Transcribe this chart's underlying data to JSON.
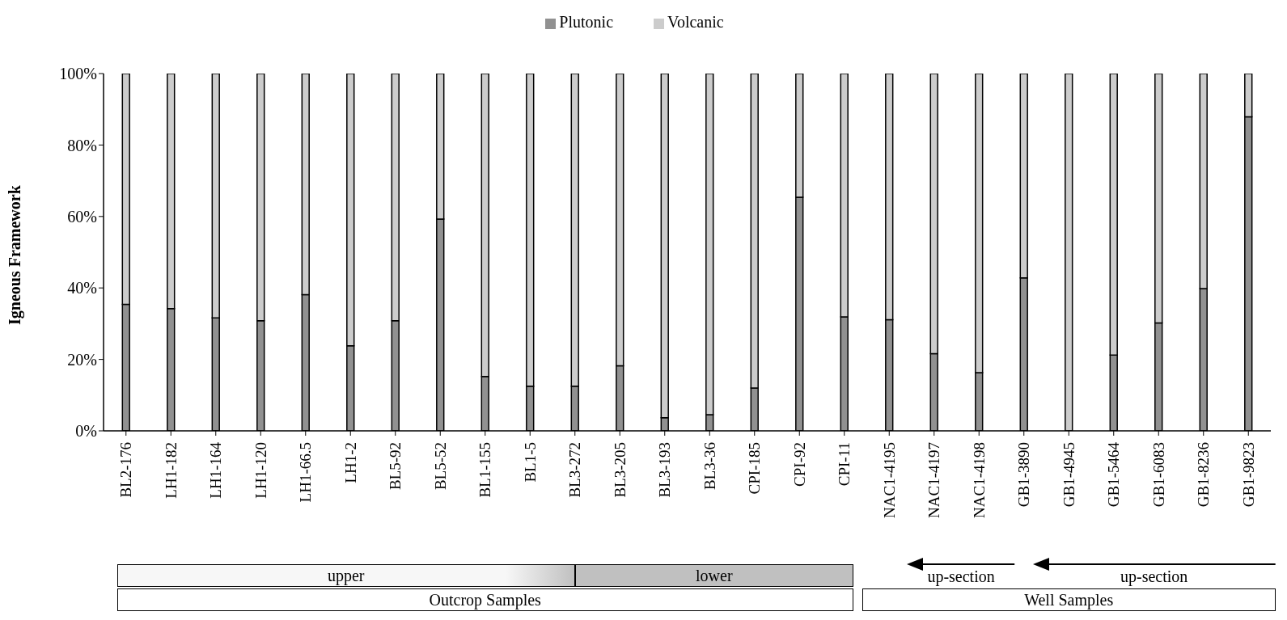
{
  "chart_data": {
    "type": "bar",
    "stacked": true,
    "ylabel": "Igneous Framework",
    "categories": [
      "BL2-176",
      "LH1-182",
      "LH1-164",
      "LH1-120",
      "LH1-66.5",
      "LH1-2",
      "BL5-92",
      "BL5-52",
      "BL1-155",
      "BL1-5",
      "BL3-272",
      "BL3-205",
      "BL3-193",
      "BL3-36",
      "CPI-185",
      "CPI-92",
      "CPI-11",
      "NAC1-4195",
      "NAC1-4197",
      "NAC1-4198",
      "GB1-3890",
      "GB1-4945",
      "GB1-5464",
      "GB1-6083",
      "GB1-8236",
      "GB1-9823"
    ],
    "series": [
      {
        "name": "Plutonic",
        "color": "#919191",
        "values": [
          35.4,
          34.2,
          31.6,
          30.8,
          38.1,
          23.8,
          30.8,
          59.3,
          15.2,
          12.5,
          12.5,
          18.2,
          3.7,
          4.5,
          12.0,
          65.4,
          31.9,
          31.1,
          21.6,
          16.3,
          42.8,
          0,
          21.2,
          30.2,
          39.8,
          87.9
        ]
      },
      {
        "name": "Volcanic",
        "color": "#cccccc",
        "values": [
          64.6,
          65.8,
          68.4,
          69.2,
          61.9,
          76.2,
          69.2,
          40.7,
          84.8,
          87.5,
          87.5,
          81.8,
          96.3,
          95.5,
          88.0,
          34.6,
          68.1,
          68.9,
          78.4,
          83.7,
          57.2,
          100,
          78.8,
          69.8,
          60.2,
          12.1
        ]
      }
    ],
    "ylim": [
      0,
      100
    ],
    "yticks": [
      {
        "value": 0,
        "label": "0%"
      },
      {
        "value": 20,
        "label": "20%"
      },
      {
        "value": 40,
        "label": "40%"
      },
      {
        "value": 60,
        "label": "60%"
      },
      {
        "value": 80,
        "label": "80%"
      },
      {
        "value": 100,
        "label": "100%"
      }
    ],
    "grid": false,
    "legend": "top",
    "annotations": [
      "upper",
      "lower",
      "up-section",
      "up-section",
      "Outcrop Samples",
      "Well Samples"
    ]
  }
}
